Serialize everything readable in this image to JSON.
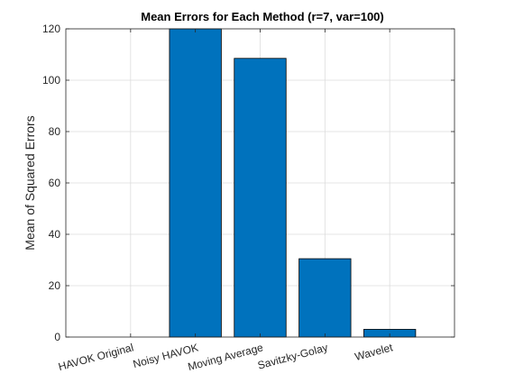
{
  "chart_data": {
    "type": "bar",
    "title": "Mean Errors for Each Method (r=7, var=100)",
    "xlabel": "",
    "ylabel": "Mean of Squared Errors",
    "categories": [
      "HAVOK Original",
      "Noisy HAVOK",
      "Moving Average",
      "Savitzky-Golay",
      "Wavelet"
    ],
    "values": [
      0,
      120,
      108.5,
      30.5,
      3
    ],
    "ylim": [
      0,
      120
    ],
    "yticks": [
      0,
      20,
      40,
      60,
      80,
      100,
      120
    ],
    "grid": true,
    "bar_color": "#0072BD",
    "bar_edge_color": "#000000",
    "grid_color": "#dcdcdc",
    "axis_color": "#262626"
  }
}
